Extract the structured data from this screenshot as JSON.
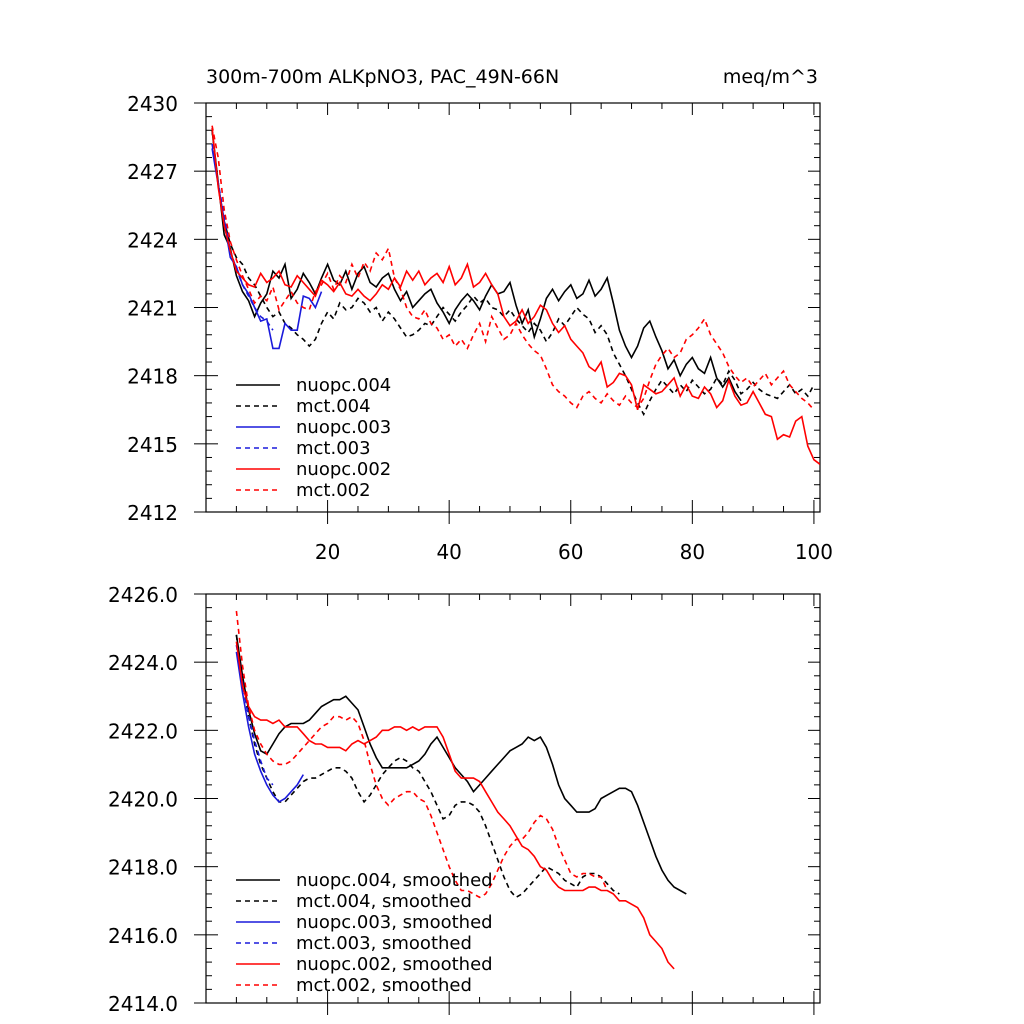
{
  "chart_data": [
    {
      "type": "line",
      "title": "300m-700m ALKpNO3, PAC_49N-66N",
      "units": "meq/m^3",
      "xlim": [
        0,
        101
      ],
      "ylim": [
        2412,
        2430
      ],
      "xticks": [
        20,
        40,
        60,
        80,
        100
      ],
      "yticks": [
        2412,
        2415,
        2418,
        2421,
        2424,
        2427,
        2430
      ],
      "ytick_labels": [
        "2412",
        "2415",
        "2418",
        "2421",
        "2424",
        "2427",
        "2430"
      ],
      "legend_position": "lower-left",
      "series": [
        {
          "name": "nuopc.004",
          "color": "#000000",
          "dash": "solid",
          "x0": 1,
          "values": [
            2428.8,
            2426.5,
            2424.2,
            2423.6,
            2422.4,
            2421.7,
            2421.3,
            2420.6,
            2421.2,
            2421.6,
            2422.6,
            2422.3,
            2422.9,
            2421.4,
            2421.8,
            2422.5,
            2422.1,
            2421.6,
            2422.3,
            2422.9,
            2422.2,
            2422.0,
            2422.6,
            2421.8,
            2422.5,
            2422.8,
            2422.1,
            2421.9,
            2422.3,
            2422.5,
            2421.8,
            2421.3,
            2421.7,
            2421.0,
            2421.3,
            2421.6,
            2421.8,
            2421.2,
            2420.8,
            2420.3,
            2420.9,
            2421.3,
            2421.6,
            2421.3,
            2420.9,
            2421.5,
            2422.0,
            2421.6,
            2421.7,
            2422.1,
            2421.1,
            2420.3,
            2420.9,
            2419.7,
            2420.5,
            2421.4,
            2421.8,
            2421.3,
            2421.7,
            2422.0,
            2421.4,
            2421.6,
            2422.2,
            2421.5,
            2421.8,
            2422.3,
            2421.2,
            2420.0,
            2419.3,
            2418.8,
            2419.3,
            2420.1,
            2420.4,
            2419.7,
            2419.1,
            2418.3,
            2418.7,
            2418.0,
            2418.5,
            2418.8,
            2418.3,
            2418.1,
            2418.8,
            2417.9,
            2417.5,
            2417.9,
            2417.3,
            2416.9
          ],
          "x_start": 1
        },
        {
          "name": "mct.004",
          "color": "#000000",
          "dash": "dashed",
          "x0": 1,
          "values": [
            2428.8,
            2426.4,
            2424.8,
            2423.8,
            2423.2,
            2422.9,
            2422.3,
            2422.0,
            2421.5,
            2421.0,
            2420.6,
            2420.8,
            2420.3,
            2420.1,
            2419.8,
            2419.6,
            2419.3,
            2419.6,
            2420.3,
            2420.8,
            2420.5,
            2421.2,
            2420.9,
            2421.0,
            2421.4,
            2421.2,
            2420.8,
            2421.0,
            2420.4,
            2420.8,
            2420.5,
            2420.1,
            2419.7,
            2419.8,
            2420.0,
            2420.3,
            2420.2,
            2420.6,
            2421.0,
            2420.7,
            2420.4,
            2420.8,
            2421.1,
            2421.5,
            2421.2,
            2421.4,
            2421.0,
            2420.9,
            2420.6,
            2420.9,
            2420.5,
            2420.2,
            2419.9,
            2420.3,
            2420.0,
            2419.5,
            2419.9,
            2420.5,
            2420.2,
            2420.6,
            2421.0,
            2420.7,
            2420.5,
            2419.9,
            2420.2,
            2419.8,
            2419.0,
            2418.5,
            2418.0,
            2417.4,
            2416.8,
            2416.3,
            2416.9,
            2417.4,
            2417.8,
            2417.5,
            2417.2,
            2417.6,
            2417.3,
            2417.8,
            2417.5,
            2417.2,
            2417.4,
            2417.9,
            2417.6,
            2418.2,
            2417.8,
            2417.2,
            2417.4,
            2417.7,
            2417.4,
            2417.2,
            2417.1,
            2417.0,
            2417.3,
            2417.6,
            2417.2,
            2417.4,
            2417.1,
            2417.6
          ],
          "x_start": 1
        },
        {
          "name": "nuopc.003",
          "color": "#1a1adb",
          "dash": "solid",
          "values": [
            2428.0,
            2426.4,
            2424.8,
            2423.2,
            2422.8,
            2422.0,
            2421.6,
            2421.0,
            2420.4,
            2420.5,
            2419.2,
            2419.2,
            2420.3,
            2420.0,
            2420.0,
            2421.5,
            2421.4,
            2421.0,
            2421.7
          ],
          "x_start": 1
        },
        {
          "name": "mct.003",
          "color": "#1a1adb",
          "dash": "dashed",
          "values": [
            2428.2,
            2426.5,
            2425.0,
            2423.5,
            2422.7,
            2422.0,
            2421.5,
            2421.0,
            2420.6,
            2420.4,
            2420.0
          ],
          "x_start": 1
        },
        {
          "name": "nuopc.002",
          "color": "#ff0000",
          "dash": "solid",
          "values": [
            2428.9,
            2426.3,
            2424.6,
            2423.5,
            2422.6,
            2422.3,
            2422.0,
            2421.9,
            2422.5,
            2422.1,
            2422.3,
            2422.6,
            2422.0,
            2421.9,
            2422.4,
            2422.1,
            2421.8,
            2421.5,
            2422.2,
            2422.0,
            2421.7,
            2422.1,
            2421.6,
            2421.5,
            2421.8,
            2421.5,
            2421.3,
            2421.6,
            2422.0,
            2421.8,
            2422.3,
            2421.9,
            2422.6,
            2422.2,
            2422.6,
            2422.0,
            2422.3,
            2422.5,
            2422.1,
            2422.8,
            2422.0,
            2422.3,
            2422.9,
            2421.9,
            2422.1,
            2422.5,
            2422.0,
            2421.6,
            2420.6,
            2420.2,
            2420.4,
            2420.9,
            2420.3,
            2420.6,
            2421.1,
            2420.9,
            2420.3,
            2419.9,
            2420.2,
            2419.6,
            2419.3,
            2419.0,
            2418.4,
            2418.2,
            2418.6,
            2417.5,
            2417.7,
            2418.1,
            2418.0,
            2417.6,
            2416.5,
            2417.6,
            2417.4,
            2417.2,
            2417.3,
            2417.6,
            2417.9,
            2417.1,
            2417.6,
            2417.1,
            2417.0,
            2417.5,
            2417.2,
            2416.6,
            2416.9,
            2417.8,
            2417.1,
            2416.7,
            2416.8,
            2417.3,
            2416.8,
            2416.3,
            2416.2,
            2415.2,
            2415.4,
            2415.3,
            2416.0,
            2416.2,
            2414.9,
            2414.3,
            2414.1
          ],
          "x_start": 1
        },
        {
          "name": "mct.002",
          "color": "#ff0000",
          "dash": "dashed",
          "values": [
            2429.0,
            2427.6,
            2425.3,
            2423.9,
            2423.1,
            2422.4,
            2421.8,
            2421.2,
            2421.5,
            2421.3,
            2421.9,
            2420.9,
            2421.3,
            2421.7,
            2421.2,
            2421.0,
            2420.9,
            2421.7,
            2422.0,
            2422.5,
            2421.8,
            2422.4,
            2422.1,
            2422.9,
            2422.3,
            2423.0,
            2422.6,
            2423.4,
            2423.1,
            2423.6,
            2422.3,
            2421.8,
            2421.0,
            2420.6,
            2420.5,
            2420.9,
            2420.3,
            2420.1,
            2419.6,
            2419.8,
            2419.3,
            2419.6,
            2419.2,
            2419.8,
            2420.3,
            2419.5,
            2420.6,
            2420.1,
            2419.6,
            2419.8,
            2420.3,
            2419.8,
            2419.4,
            2419.1,
            2418.9,
            2418.3,
            2417.6,
            2417.3,
            2417.1,
            2416.8,
            2416.6,
            2417.1,
            2417.3,
            2417.0,
            2416.8,
            2417.2,
            2416.9,
            2416.7,
            2417.1,
            2416.8,
            2416.6,
            2417.0,
            2417.8,
            2418.5,
            2418.9,
            2419.2,
            2418.8,
            2419.0,
            2419.6,
            2419.8,
            2420.1,
            2420.5,
            2419.8,
            2419.4,
            2419.0,
            2418.4,
            2418.0,
            2417.7,
            2417.9,
            2417.5,
            2417.8,
            2418.1,
            2417.6,
            2417.9,
            2418.2,
            2417.6,
            2417.3,
            2417.0,
            2416.8,
            2416.5
          ],
          "x_start": 1
        }
      ]
    },
    {
      "type": "line",
      "title": "",
      "xlim": [
        0,
        101
      ],
      "ylim": [
        2414,
        2426
      ],
      "xticks": [
        20,
        40,
        60,
        80,
        100
      ],
      "yticks": [
        2414,
        2416,
        2418,
        2420,
        2422,
        2424,
        2426
      ],
      "ytick_labels": [
        "2414.0",
        "2416.0",
        "2418.0",
        "2420.0",
        "2422.0",
        "2424.0",
        "2426.0"
      ],
      "legend_position": "lower-left",
      "series": [
        {
          "name": "nuopc.004, smoothed",
          "color": "#000000",
          "dash": "solid",
          "values": [
            2424.8,
            2423.6,
            2422.6,
            2421.9,
            2421.4,
            2421.3,
            2421.6,
            2421.9,
            2422.1,
            2422.2,
            2422.2,
            2422.2,
            2422.3,
            2422.5,
            2422.7,
            2422.8,
            2422.9,
            2422.9,
            2423.0,
            2422.8,
            2422.6,
            2422.1,
            2421.6,
            2421.2,
            2420.9,
            2420.9,
            2420.9,
            2420.9,
            2420.9,
            2421.0,
            2421.1,
            2421.3,
            2421.6,
            2421.8,
            2421.5,
            2421.2,
            2420.9,
            2420.7,
            2420.5,
            2420.2,
            2420.4,
            2420.6,
            2420.8,
            2421.0,
            2421.2,
            2421.4,
            2421.5,
            2421.6,
            2421.8,
            2421.7,
            2421.8,
            2421.5,
            2421.0,
            2420.4,
            2420.0,
            2419.8,
            2419.6,
            2419.6,
            2419.6,
            2419.7,
            2420.0,
            2420.1,
            2420.2,
            2420.3,
            2420.3,
            2420.2,
            2419.8,
            2419.3,
            2418.8,
            2418.3,
            2417.9,
            2417.6,
            2417.4,
            2417.3,
            2417.2
          ],
          "x_start": 5
        },
        {
          "name": "mct.004, smoothed",
          "color": "#000000",
          "dash": "dashed",
          "values": [
            2424.8,
            2423.4,
            2422.4,
            2421.6,
            2421.0,
            2420.6,
            2420.2,
            2419.9,
            2419.9,
            2420.1,
            2420.3,
            2420.5,
            2420.6,
            2420.6,
            2420.7,
            2420.8,
            2420.9,
            2420.9,
            2420.8,
            2420.6,
            2420.2,
            2419.9,
            2420.1,
            2420.4,
            2420.7,
            2420.9,
            2421.1,
            2421.2,
            2421.1,
            2420.9,
            2420.8,
            2420.5,
            2420.2,
            2419.8,
            2419.4,
            2419.5,
            2419.8,
            2419.9,
            2419.9,
            2419.8,
            2419.6,
            2419.2,
            2418.7,
            2418.2,
            2417.7,
            2417.3,
            2417.1,
            2417.2,
            2417.4,
            2417.6,
            2417.8,
            2418.0,
            2417.9,
            2417.8,
            2417.6,
            2417.5,
            2417.4,
            2417.7,
            2417.8,
            2417.8,
            2417.7,
            2417.5,
            2417.3,
            2417.2
          ],
          "x_start": 5
        },
        {
          "name": "nuopc.003, smoothed",
          "color": "#1a1adb",
          "dash": "solid",
          "values": [
            2424.3,
            2423.1,
            2422.1,
            2421.3,
            2420.8,
            2420.4,
            2420.1,
            2419.9,
            2420.0,
            2420.2,
            2420.4,
            2420.7
          ],
          "x_start": 5
        },
        {
          "name": "mct.003, smoothed",
          "color": "#1a1adb",
          "dash": "dashed",
          "values": [
            2424.5,
            2423.4,
            2422.4,
            2421.7,
            2421.1,
            2420.6,
            2420.4
          ],
          "x_start": 5
        },
        {
          "name": "nuopc.002, smoothed",
          "color": "#ff0000",
          "dash": "solid",
          "values": [
            2424.6,
            2423.3,
            2422.7,
            2422.4,
            2422.3,
            2422.3,
            2422.2,
            2422.3,
            2422.1,
            2422.1,
            2422.1,
            2421.9,
            2421.7,
            2421.6,
            2421.6,
            2421.5,
            2421.5,
            2421.5,
            2421.4,
            2421.6,
            2421.7,
            2421.6,
            2421.7,
            2421.8,
            2422.0,
            2422.0,
            2422.1,
            2422.1,
            2422.0,
            2422.1,
            2422.0,
            2422.1,
            2422.1,
            2422.1,
            2421.8,
            2421.3,
            2420.8,
            2420.6,
            2420.6,
            2420.6,
            2420.5,
            2420.2,
            2419.9,
            2419.6,
            2419.4,
            2419.2,
            2418.9,
            2418.6,
            2418.5,
            2418.3,
            2418.0,
            2417.9,
            2417.6,
            2417.4,
            2417.3,
            2417.3,
            2417.3,
            2417.3,
            2417.4,
            2417.4,
            2417.3,
            2417.3,
            2417.2,
            2417.0,
            2417.0,
            2416.9,
            2416.8,
            2416.5,
            2416.0,
            2415.8,
            2415.6,
            2415.2,
            2415.0
          ],
          "x_start": 5
        },
        {
          "name": "mct.002, smoothed",
          "color": "#ff0000",
          "dash": "dashed",
          "values": [
            2425.5,
            2423.9,
            2422.7,
            2422.0,
            2421.6,
            2421.3,
            2421.1,
            2421.0,
            2421.0,
            2421.1,
            2421.3,
            2421.5,
            2421.7,
            2421.9,
            2422.1,
            2422.2,
            2422.4,
            2422.4,
            2422.3,
            2422.4,
            2422.2,
            2421.7,
            2421.0,
            2420.4,
            2420.0,
            2419.8,
            2420.0,
            2420.1,
            2420.2,
            2420.2,
            2420.0,
            2419.9,
            2419.5,
            2419.0,
            2418.5,
            2418.0,
            2417.6,
            2417.3,
            2417.3,
            2417.2,
            2417.1,
            2417.2,
            2417.5,
            2417.9,
            2418.3,
            2418.6,
            2418.8,
            2418.8,
            2419.0,
            2419.3,
            2419.5,
            2419.4,
            2419.1,
            2418.6,
            2418.2,
            2417.8,
            2417.7,
            2417.8,
            2417.8,
            2417.7,
            2417.7,
            2417.3
          ],
          "x_start": 5
        }
      ]
    }
  ]
}
